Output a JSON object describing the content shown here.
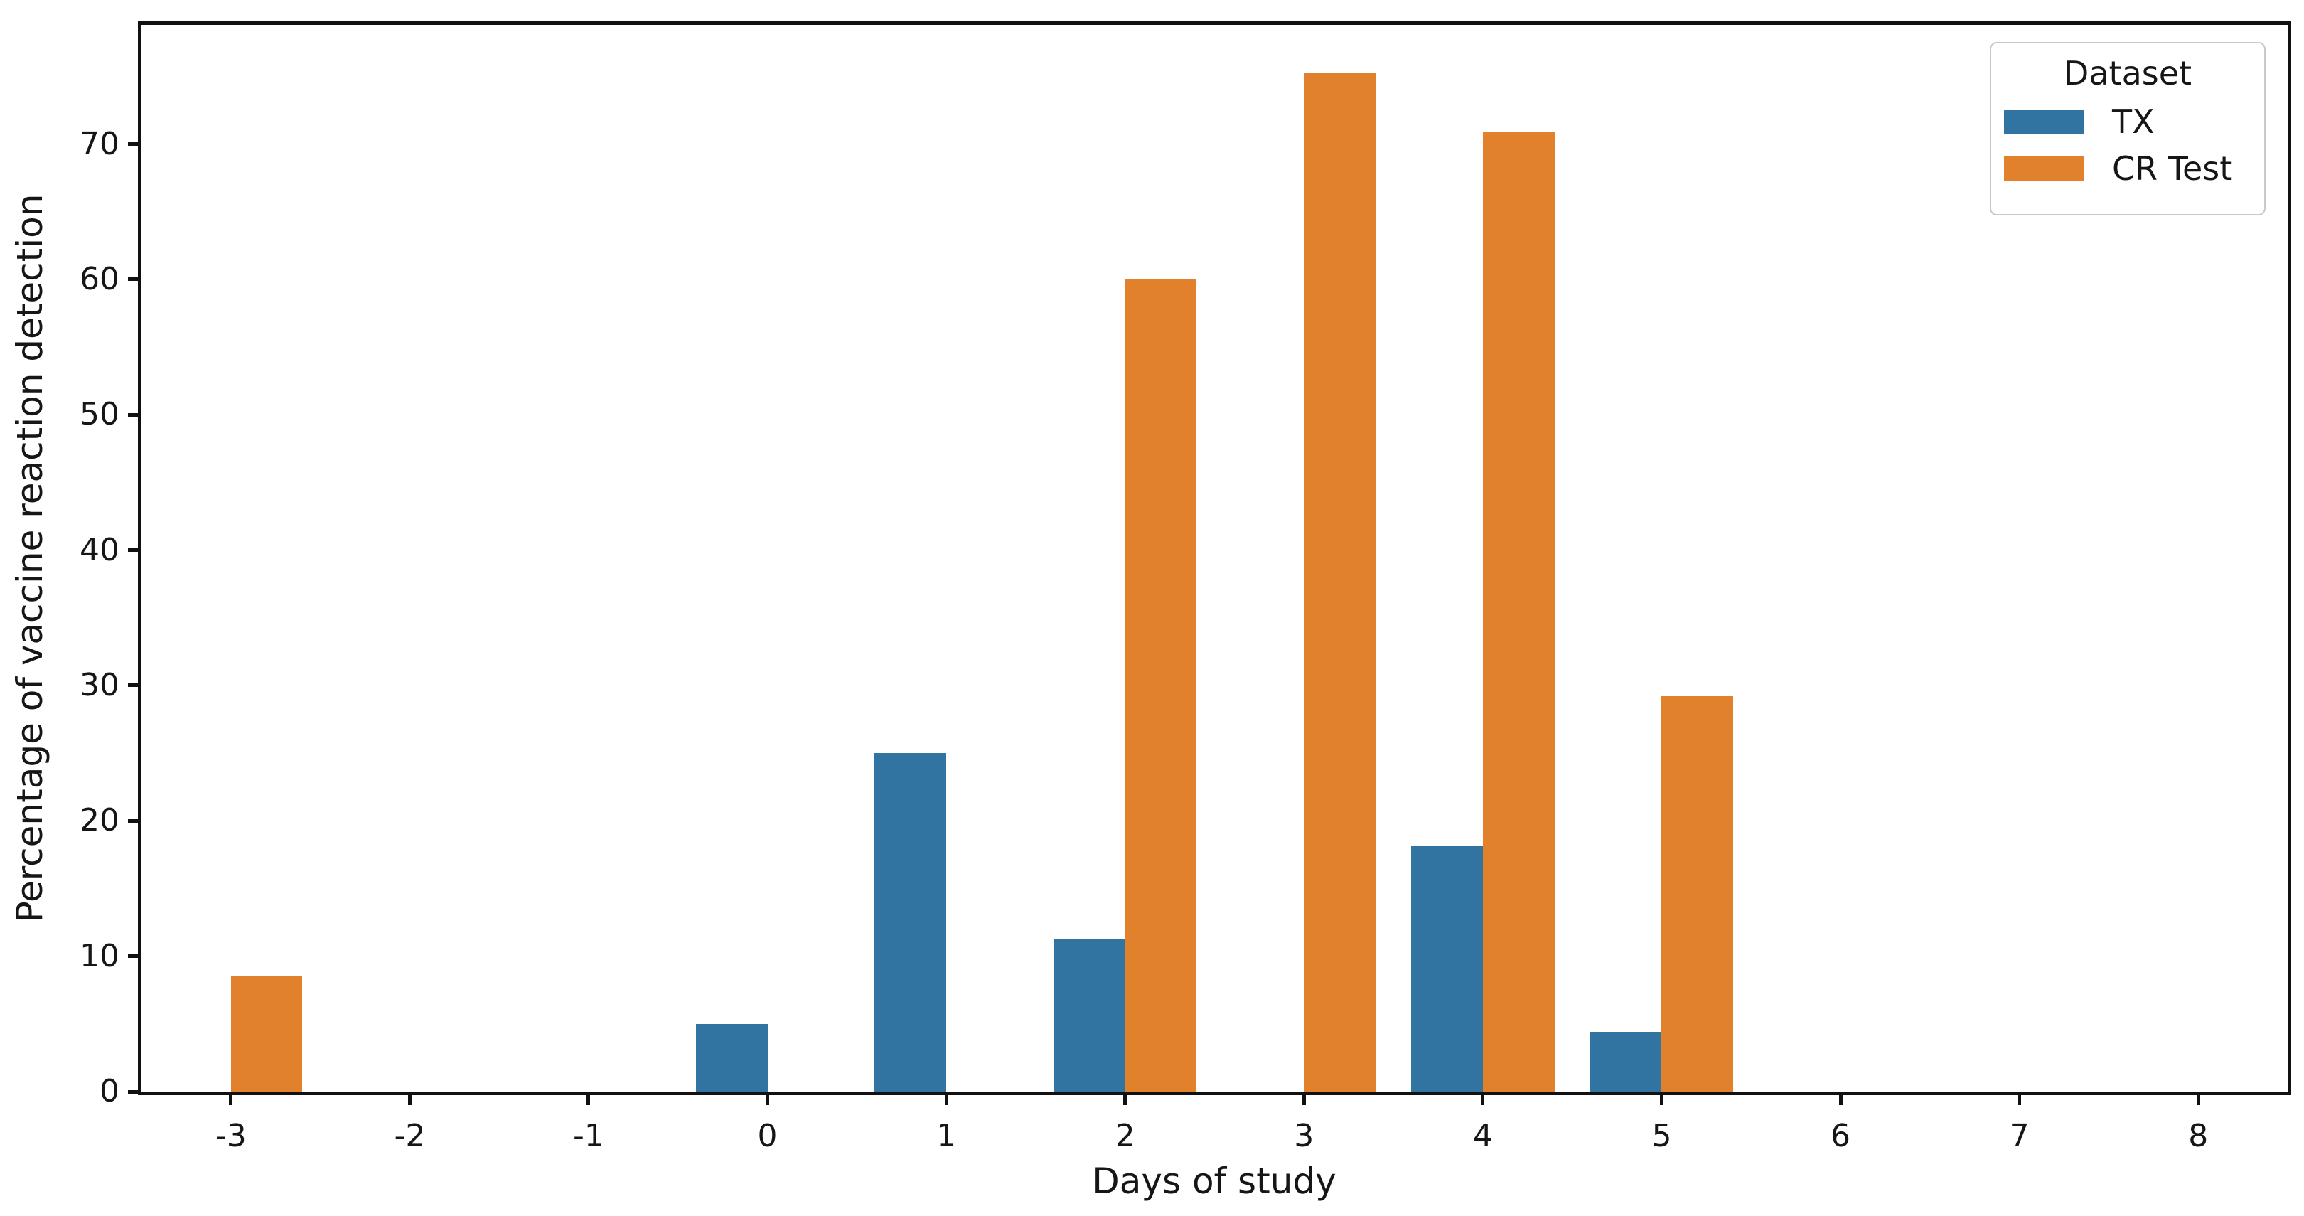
{
  "figure": {
    "xlabel": "Days of study",
    "ylabel": "Percentage of vaccine reaction detection",
    "legend_title": "Dataset"
  },
  "chart_data": {
    "type": "bar",
    "title": "",
    "xlabel": "Days of study",
    "ylabel": "Percentage of vaccine reaction detection",
    "categories": [
      "-3",
      "-2",
      "-1",
      "0",
      "1",
      "2",
      "3",
      "4",
      "5",
      "6",
      "7",
      "8"
    ],
    "series": [
      {
        "name": "TX",
        "color": "#3274a1",
        "values": [
          0,
          0,
          0,
          5,
          25,
          11.3,
          0,
          18.2,
          4.4,
          0,
          0,
          0
        ]
      },
      {
        "name": "CR Test",
        "color": "#e1812c",
        "values": [
          8.5,
          0,
          0,
          0,
          0,
          60,
          75.3,
          70.9,
          29.2,
          0,
          0,
          0
        ]
      }
    ],
    "yticks": [
      0,
      10,
      20,
      30,
      40,
      50,
      60,
      70
    ],
    "ylim": [
      0,
      78.8
    ],
    "xlim": [
      -3.5,
      8.5
    ],
    "grid": false,
    "legend": {
      "title": "Dataset",
      "position": "upper right"
    },
    "axis_color": "#111111",
    "text_color": "#161616"
  }
}
